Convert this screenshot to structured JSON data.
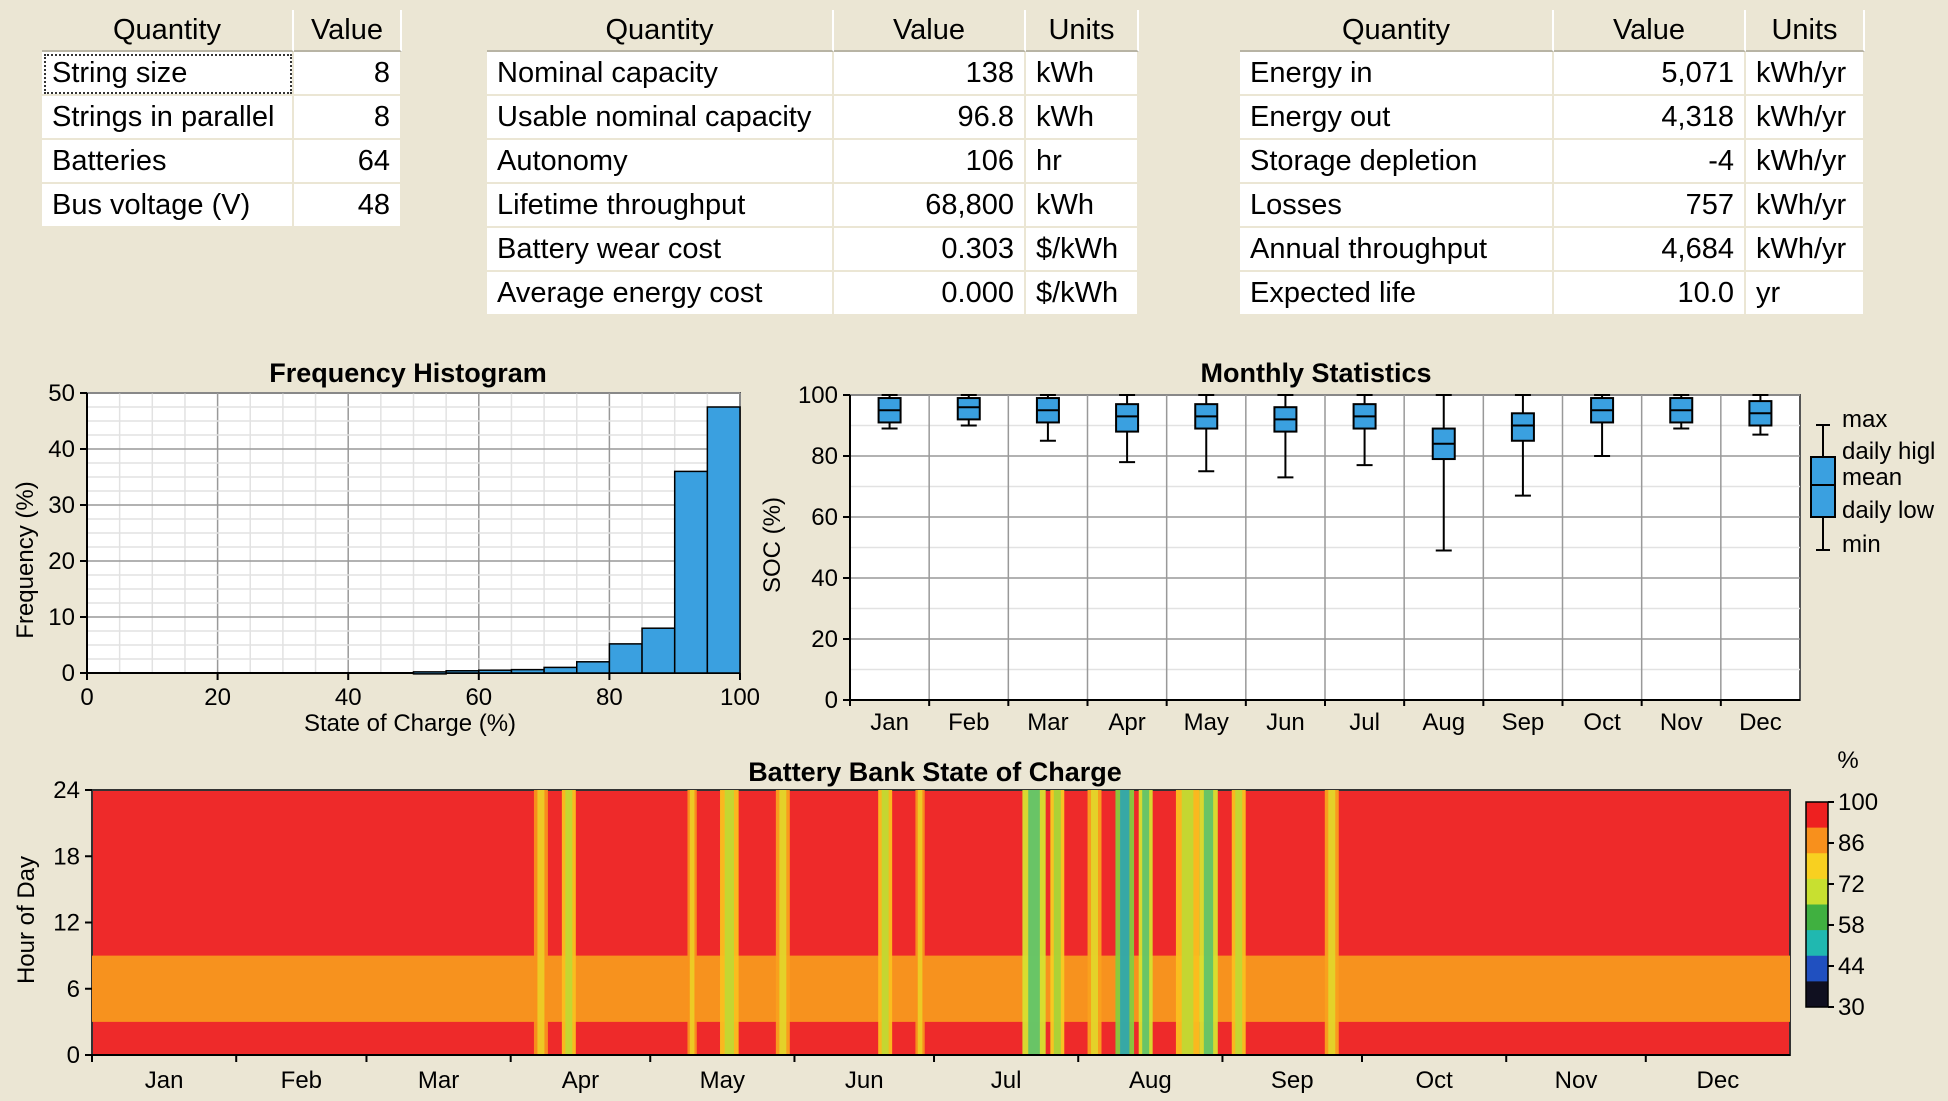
{
  "table1": {
    "headers": [
      "Quantity",
      "Value"
    ],
    "rows": [
      [
        "String size",
        "8"
      ],
      [
        "Strings in parallel",
        "8"
      ],
      [
        "Batteries",
        "64"
      ],
      [
        "Bus voltage (V)",
        "48"
      ]
    ]
  },
  "table2": {
    "headers": [
      "Quantity",
      "Value",
      "Units"
    ],
    "rows": [
      [
        "Nominal capacity",
        "138",
        "kWh"
      ],
      [
        "Usable nominal capacity",
        "96.8",
        "kWh"
      ],
      [
        "Autonomy",
        "106",
        "hr"
      ],
      [
        "Lifetime throughput",
        "68,800",
        "kWh"
      ],
      [
        "Battery wear cost",
        "0.303",
        "$/kWh"
      ],
      [
        "Average energy cost",
        "0.000",
        "$/kWh"
      ]
    ]
  },
  "table3": {
    "headers": [
      "Quantity",
      "Value",
      "Units"
    ],
    "rows": [
      [
        "Energy in",
        "5,071",
        "kWh/yr"
      ],
      [
        "Energy out",
        "4,318",
        "kWh/yr"
      ],
      [
        "Storage depletion",
        "-4",
        "kWh/yr"
      ],
      [
        "Losses",
        "757",
        "kWh/yr"
      ],
      [
        "Annual throughput",
        "4,684",
        "kWh/yr"
      ],
      [
        "Expected life",
        "10.0",
        "yr"
      ]
    ]
  },
  "chart_data": [
    {
      "type": "bar",
      "title": "Frequency Histogram",
      "xlabel": "State of Charge (%)",
      "ylabel": "Frequency (%)",
      "xlim": [
        0,
        100
      ],
      "ylim": [
        0,
        50
      ],
      "xticks": [
        "0",
        "20",
        "40",
        "60",
        "80",
        "100"
      ],
      "yticks": [
        "0",
        "10",
        "20",
        "30",
        "40",
        "50"
      ],
      "bin_width": 5,
      "bins": [
        50,
        55,
        60,
        65,
        70,
        75,
        80,
        85,
        90,
        95
      ],
      "values": [
        0.2,
        0.4,
        0.5,
        0.6,
        1.0,
        2.0,
        5.2,
        8.0,
        36.0,
        47.5
      ],
      "bar_color": "#3aa0e0",
      "grid": true
    },
    {
      "type": "box",
      "title": "Monthly Statistics",
      "ylabel": "SOC (%)",
      "ylim": [
        0,
        100
      ],
      "yticks": [
        "0",
        "20",
        "40",
        "60",
        "80",
        "100"
      ],
      "categories": [
        "Jan",
        "Feb",
        "Mar",
        "Apr",
        "May",
        "Jun",
        "Jul",
        "Aug",
        "Sep",
        "Oct",
        "Nov",
        "Dec"
      ],
      "stats": [
        {
          "min": 89,
          "low": 91,
          "mean": 95,
          "high": 99,
          "max": 100
        },
        {
          "min": 90,
          "low": 92,
          "mean": 96,
          "high": 99,
          "max": 100
        },
        {
          "min": 85,
          "low": 91,
          "mean": 95,
          "high": 99,
          "max": 100
        },
        {
          "min": 78,
          "low": 88,
          "mean": 93,
          "high": 97,
          "max": 100
        },
        {
          "min": 75,
          "low": 89,
          "mean": 93,
          "high": 97,
          "max": 100
        },
        {
          "min": 73,
          "low": 88,
          "mean": 92,
          "high": 96,
          "max": 100
        },
        {
          "min": 77,
          "low": 89,
          "mean": 93,
          "high": 97,
          "max": 100
        },
        {
          "min": 49,
          "low": 79,
          "mean": 84,
          "high": 89,
          "max": 100
        },
        {
          "min": 67,
          "low": 85,
          "mean": 90,
          "high": 94,
          "max": 100
        },
        {
          "min": 80,
          "low": 91,
          "mean": 95,
          "high": 99,
          "max": 100
        },
        {
          "min": 89,
          "low": 91,
          "mean": 95,
          "high": 99,
          "max": 100
        },
        {
          "min": 87,
          "low": 90,
          "mean": 94,
          "high": 98,
          "max": 100
        }
      ],
      "legend": [
        "max",
        "daily higl",
        "mean",
        "daily low",
        "min"
      ],
      "box_color": "#3aa0e0",
      "grid": true
    },
    {
      "type": "heatmap",
      "title": "Battery Bank State of Charge",
      "ylabel": "Hour of Day",
      "yticks": [
        "0",
        "6",
        "12",
        "18",
        "24"
      ],
      "months": [
        "Jan",
        "Feb",
        "Mar",
        "Apr",
        "May",
        "Jun",
        "Jul",
        "Aug",
        "Sep",
        "Oct",
        "Nov",
        "Dec"
      ],
      "colorbar_unit": "%",
      "colorbar_ticks": [
        "100",
        "86",
        "72",
        "58",
        "44",
        "30"
      ],
      "colorbar_colors": [
        "#ee2020",
        "#f8901c",
        "#f8d020",
        "#c8e030",
        "#40b040",
        "#20b8b0",
        "#2050c0",
        "#101020"
      ],
      "base_high": "#ee2a2a",
      "base_low": "#f7921e",
      "low_band_hours": [
        3,
        9
      ],
      "low_events": [
        {
          "day": 95,
          "width": 3,
          "level": 86
        },
        {
          "day": 101,
          "width": 3,
          "level": 80
        },
        {
          "day": 128,
          "width": 2,
          "level": 86
        },
        {
          "day": 135,
          "width": 4,
          "level": 80
        },
        {
          "day": 147,
          "width": 3,
          "level": 84
        },
        {
          "day": 169,
          "width": 3,
          "level": 80
        },
        {
          "day": 177,
          "width": 2,
          "level": 86
        },
        {
          "day": 200,
          "width": 5,
          "level": 72
        },
        {
          "day": 206,
          "width": 3,
          "level": 78
        },
        {
          "day": 214,
          "width": 3,
          "level": 84
        },
        {
          "day": 220,
          "width": 4,
          "level": 66
        },
        {
          "day": 225,
          "width": 3,
          "level": 72
        },
        {
          "day": 233,
          "width": 5,
          "level": 80
        },
        {
          "day": 238,
          "width": 4,
          "level": 72
        },
        {
          "day": 245,
          "width": 3,
          "level": 80
        },
        {
          "day": 265,
          "width": 3,
          "level": 84
        }
      ]
    }
  ]
}
